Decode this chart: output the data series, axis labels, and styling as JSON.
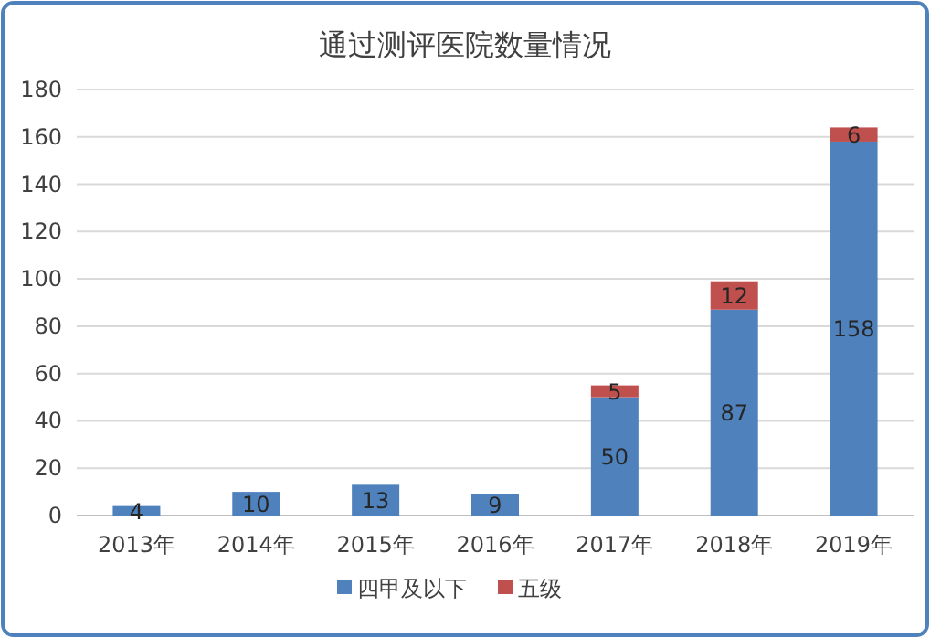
{
  "chart_data": {
    "type": "bar",
    "title": "通过测评医院数量情况",
    "stacked": true,
    "categories": [
      "2013年",
      "2014年",
      "2015年",
      "2016年",
      "2017年",
      "2018年",
      "2019年"
    ],
    "series": [
      {
        "name": "四甲及以下",
        "color": "#4f81bd",
        "values": [
          4,
          10,
          13,
          9,
          50,
          87,
          158
        ]
      },
      {
        "name": "五级",
        "color": "#c0504d",
        "values": [
          null,
          null,
          null,
          null,
          5,
          12,
          6
        ]
      }
    ],
    "ylim": [
      0,
      180
    ],
    "yticks": [
      0,
      20,
      40,
      60,
      80,
      100,
      120,
      140,
      160,
      180
    ],
    "grid": "y",
    "legend": "bottom",
    "data_labels": true
  }
}
